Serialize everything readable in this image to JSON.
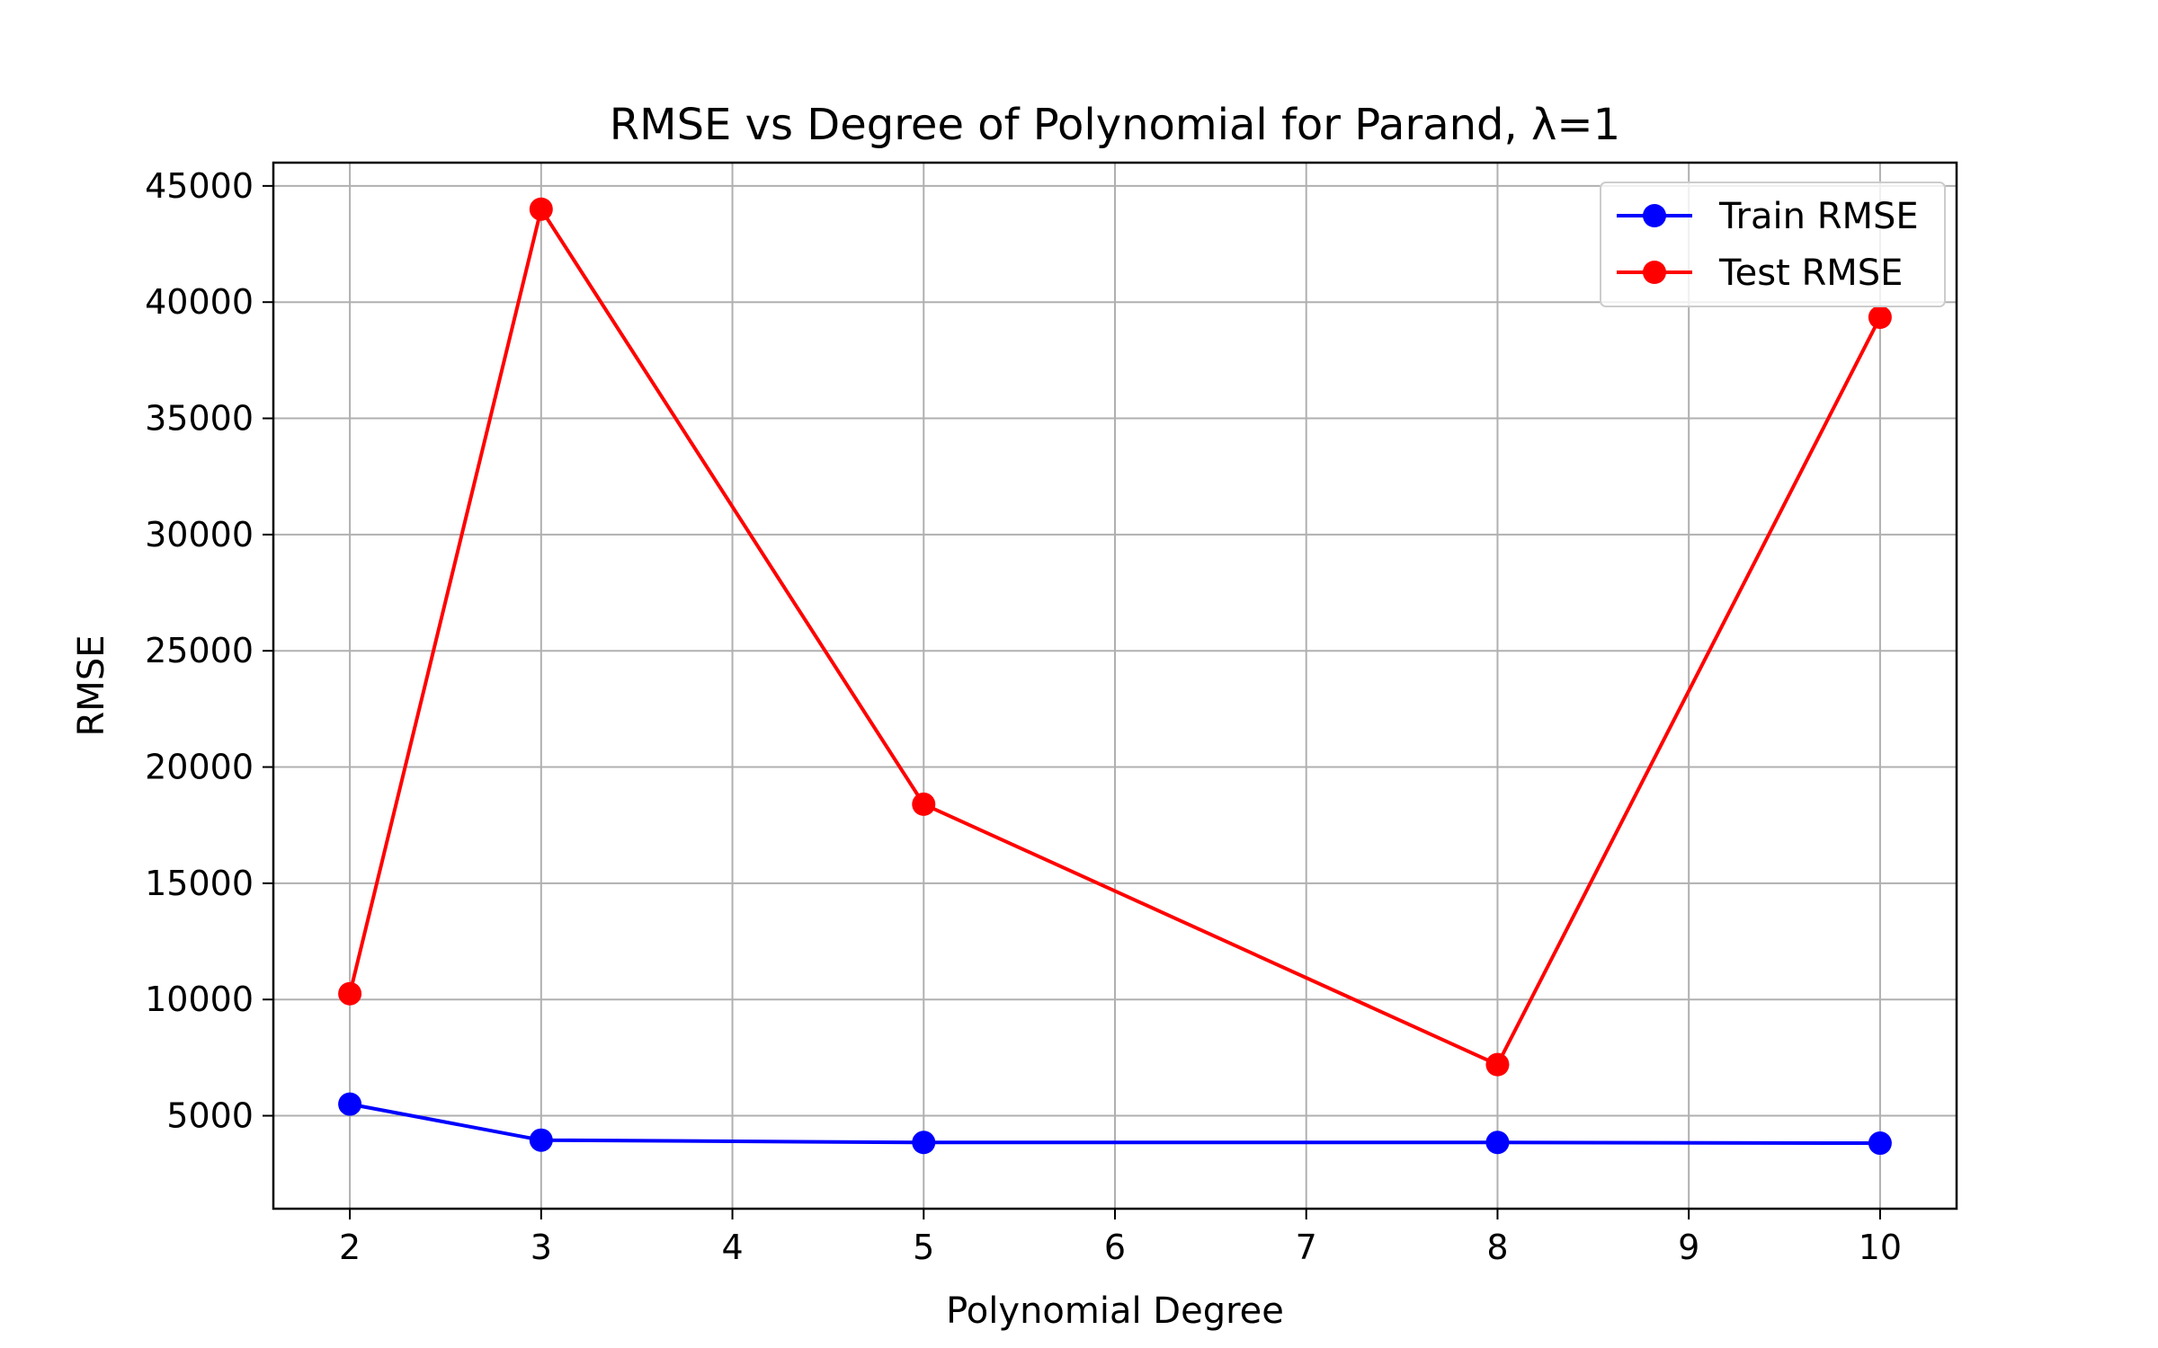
{
  "chart_data": {
    "type": "line",
    "title": "RMSE vs Degree of Polynomial for Parand, λ=1",
    "xlabel": "Polynomial Degree",
    "ylabel": "RMSE",
    "x": [
      2,
      3,
      5,
      8,
      10
    ],
    "xlim": [
      1.6,
      10.4
    ],
    "ylim": [
      1000,
      46000
    ],
    "xticks": [
      2,
      3,
      4,
      5,
      6,
      7,
      8,
      9,
      10
    ],
    "yticks": [
      5000,
      10000,
      15000,
      20000,
      25000,
      30000,
      35000,
      40000,
      45000
    ],
    "grid": true,
    "legend_position": "top-right",
    "series": [
      {
        "name": "Train RMSE",
        "color": "#0000ff",
        "values": [
          5500,
          3950,
          3850,
          3850,
          3820
        ]
      },
      {
        "name": "Test RMSE",
        "color": "#ff0000",
        "values": [
          10250,
          44000,
          18400,
          7200,
          39350
        ]
      }
    ]
  }
}
